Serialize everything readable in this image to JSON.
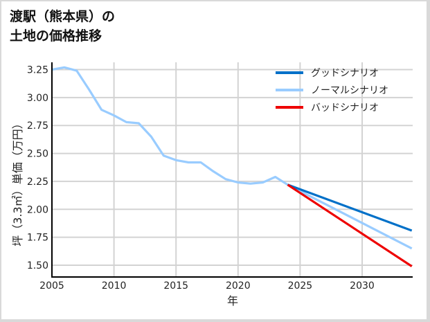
{
  "title": {
    "line1": "渡駅（熊本県）の",
    "line2": "土地の価格推移"
  },
  "colors": {
    "good": "#0070c8",
    "normal": "#99ccff",
    "bad": "#ee0000",
    "grid": "#d3d3d3",
    "axis": "#000000"
  },
  "chart_data": {
    "type": "line",
    "title": "渡駅（熊本県）の土地の価格推移",
    "xlabel": "年",
    "ylabel": "坪（3.3㎡）単価（万円）",
    "xlim": [
      2005,
      2034
    ],
    "ylim": [
      1.4,
      3.31
    ],
    "x_ticks": [
      2005,
      2010,
      2015,
      2020,
      2025,
      2030
    ],
    "y_ticks": [
      1.5,
      1.75,
      2.0,
      2.25,
      2.5,
      2.75,
      3.0,
      3.25
    ],
    "y_tick_labels": [
      "1.50",
      "1.75",
      "2.00",
      "2.25",
      "2.50",
      "2.75",
      "3.00",
      "3.25"
    ],
    "grid": true,
    "legend_position": "upper right",
    "series": [
      {
        "name": "グッドシナリオ",
        "key": "good",
        "x": [
          2024,
          2034
        ],
        "values": [
          2.22,
          1.81
        ]
      },
      {
        "name": "ノーマルシナリオ",
        "key": "normal",
        "x": [
          2005,
          2006,
          2007,
          2008,
          2009,
          2010,
          2011,
          2012,
          2013,
          2014,
          2015,
          2016,
          2017,
          2018,
          2019,
          2020,
          2021,
          2022,
          2023,
          2024,
          2034
        ],
        "values": [
          3.25,
          3.27,
          3.24,
          3.07,
          2.89,
          2.84,
          2.78,
          2.77,
          2.65,
          2.48,
          2.44,
          2.42,
          2.42,
          2.34,
          2.27,
          2.24,
          2.23,
          2.24,
          2.29,
          2.22,
          1.65
        ]
      },
      {
        "name": "バッドシナリオ",
        "key": "bad",
        "x": [
          2024,
          2034
        ],
        "values": [
          2.22,
          1.49
        ]
      }
    ]
  }
}
